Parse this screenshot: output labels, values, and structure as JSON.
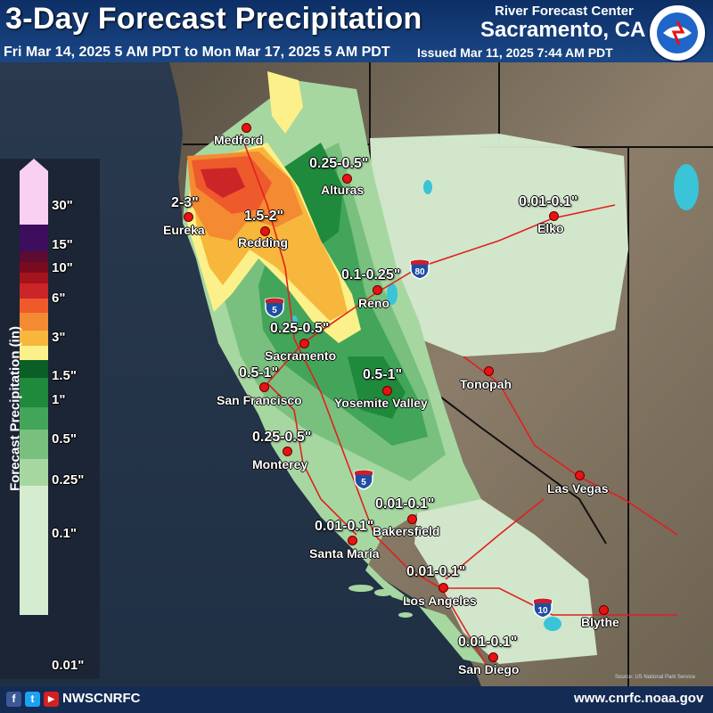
{
  "header": {
    "title": "3-Day Forecast Precipitation",
    "period": "Fri Mar 14, 2025 5 AM PDT to Mon Mar 17, 2025 5 AM PDT",
    "issued": "Issued Mar 11, 2025 7:44 AM PDT",
    "center_line1": "River Forecast Center",
    "center_line2": "Sacramento, CA",
    "logo": "national-weather-service-logo"
  },
  "legend": {
    "title": "Forecast Precipitation (in)",
    "bands": [
      {
        "color": "#f9d0f2"
      },
      {
        "color": "#3c0e5d"
      },
      {
        "color": "#5e0b32"
      },
      {
        "color": "#7a0b1f"
      },
      {
        "color": "#a5131c"
      },
      {
        "color": "#cc2527"
      },
      {
        "color": "#ee5a2c"
      },
      {
        "color": "#f48a31"
      },
      {
        "color": "#f7b73c"
      },
      {
        "color": "#fcf08a"
      },
      {
        "color": "#0b5f26"
      },
      {
        "color": "#1f8a3c"
      },
      {
        "color": "#43a55a"
      },
      {
        "color": "#79c07f"
      },
      {
        "color": "#a6d7a1"
      },
      {
        "color": "#d6ecd1"
      }
    ],
    "ticks": [
      "30\"",
      "15\"",
      "10\"",
      "6\"",
      "3\"",
      "1.5\"",
      "1\"",
      "0.5\"",
      "0.25\"",
      "0.1\"",
      "0.01\""
    ]
  },
  "cities": [
    {
      "name": "Medford"
    },
    {
      "name": "Eureka"
    },
    {
      "name": "Redding"
    },
    {
      "name": "Alturas"
    },
    {
      "name": "Reno"
    },
    {
      "name": "Elko"
    },
    {
      "name": "Sacramento"
    },
    {
      "name": "San Francisco"
    },
    {
      "name": "Yosemite Valley"
    },
    {
      "name": "Tonopah"
    },
    {
      "name": "Monterey"
    },
    {
      "name": "Las Vegas"
    },
    {
      "name": "Bakersfield"
    },
    {
      "name": "Santa Maria"
    },
    {
      "name": "Los Angeles"
    },
    {
      "name": "Blythe"
    },
    {
      "name": "San Diego"
    }
  ],
  "amounts": [
    {
      "text": "2-3\""
    },
    {
      "text": "1.5-2\""
    },
    {
      "text": "0.25-0.5\""
    },
    {
      "text": "0.01-0.1\""
    },
    {
      "text": "0.1-0.25\""
    },
    {
      "text": "0.25-0.5\""
    },
    {
      "text": "0.5-1\""
    },
    {
      "text": "0.5-1\""
    },
    {
      "text": "0.25-0.5\""
    },
    {
      "text": "0.01-0.1\""
    },
    {
      "text": "0.01-0.1\""
    },
    {
      "text": "0.01-0.1\""
    },
    {
      "text": "0.01-0.1\""
    }
  ],
  "highways": [
    {
      "num": "80"
    },
    {
      "num": "5"
    },
    {
      "num": "5"
    },
    {
      "num": "10"
    }
  ],
  "attribution": "Source: US National Park Service",
  "footer": {
    "handle": "NWSCNRFC",
    "website": "www.cnrfc.noaa.gov",
    "icons": [
      "facebook-icon",
      "twitter-icon",
      "youtube-icon"
    ],
    "icon_glyphs": [
      "f",
      "t",
      "▶"
    ]
  }
}
